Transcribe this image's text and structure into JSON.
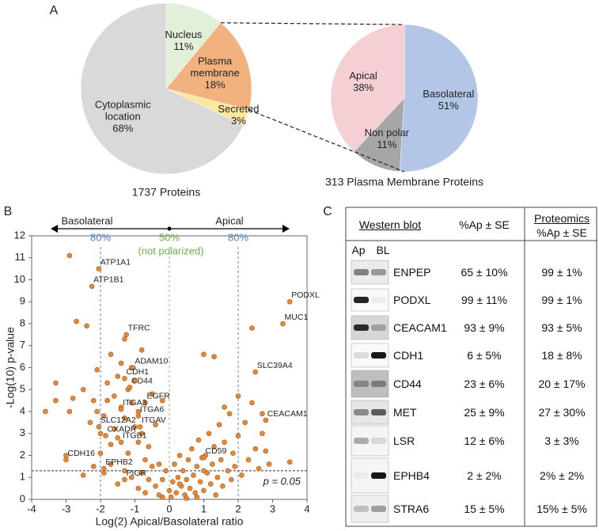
{
  "panel_labels": [
    "A",
    "B",
    "C"
  ],
  "chart_data": [
    {
      "type": "pie",
      "caption": "1737 Proteins",
      "categories": [
        "Nucleus",
        "Plasma membrane",
        "Secreted",
        "Cytoplasmic location"
      ],
      "values": [
        11,
        18,
        3,
        68
      ],
      "value_labels": [
        "11%",
        "18%",
        "3%",
        "68%"
      ],
      "colors": [
        "#e3f0d9",
        "#f2b27f",
        "#fde79c",
        "#d9d9d9"
      ]
    },
    {
      "type": "pie",
      "caption": "313 Plasma Membrane Proteins",
      "categories": [
        "Basolateral",
        "Non polar",
        "Apical"
      ],
      "values": [
        51,
        11,
        38
      ],
      "value_labels": [
        "51%",
        "11%",
        "38%"
      ],
      "colors": [
        "#b4c6e7",
        "#a6a6a6",
        "#f4cfd3"
      ]
    },
    {
      "type": "scatter",
      "x_label": "Log(2) Apical/Basolateral ratio",
      "y_label": "-Log(10) p-value",
      "xlim": [
        -4,
        4
      ],
      "ylim": [
        0,
        12
      ],
      "xticks": [
        -4,
        -3,
        -2,
        -1,
        0,
        1,
        2,
        3,
        4
      ],
      "yticks": [
        0,
        1,
        2,
        3,
        4,
        5,
        6,
        7,
        8,
        9,
        10,
        11,
        12
      ],
      "color": "#e2893b",
      "direction_labels": [
        "Basolateral",
        "Apical"
      ],
      "vlines": [
        {
          "x": -2,
          "label": "80%",
          "color": "#4f81c7",
          "label_color": "#4f81c7"
        },
        {
          "x": 0,
          "label": "50%",
          "sublabel": "(not polarized)",
          "color": "#b3a68a",
          "label_color": "#6ab04c"
        },
        {
          "x": 2,
          "label": "80%",
          "color": "#4f81c7",
          "label_color": "#4f81c7"
        }
      ],
      "hline": {
        "y": 1.3,
        "label": "p = 0.05"
      },
      "x": [
        -3.6,
        -3.3,
        -3.3,
        -3.0,
        -2.9,
        -2.7,
        -2.8,
        -2.9,
        -2.5,
        -2.4,
        -2.3,
        -2.2,
        -2.1,
        -2.1,
        -2.0,
        -2.0,
        -1.9,
        -1.8,
        -1.8,
        -1.7,
        -1.7,
        -1.6,
        -1.6,
        -1.5,
        -1.5,
        -1.4,
        -1.4,
        -1.3,
        -1.3,
        -1.2,
        -1.2,
        -1.1,
        -1.1,
        -1.0,
        -1.0,
        -0.9,
        -0.9,
        -0.8,
        -0.8,
        -0.7,
        -0.6,
        -0.5,
        -0.4,
        -0.3,
        -0.2,
        -2.5,
        -2.2,
        -1.9,
        -1.7,
        -1.5,
        -1.3,
        -1.1,
        -0.9,
        -0.8,
        -0.7,
        -0.6,
        -0.5,
        -0.4,
        -0.3,
        -0.2,
        -0.1,
        0,
        0.05,
        0.1,
        0.15,
        0.2,
        0.25,
        0.3,
        0.35,
        0.4,
        0.45,
        0.5,
        0.55,
        0.6,
        0.65,
        0.7,
        0.75,
        0.8,
        0.85,
        0.9,
        0.95,
        1.0,
        1.05,
        1.1,
        1.15,
        1.2,
        1.25,
        1.3,
        1.35,
        1.4,
        1.45,
        1.5,
        1.55,
        1.6,
        1.7,
        1.75,
        1.8,
        1.85,
        1.9,
        2.0,
        2.1,
        2.2,
        2.3,
        2.4,
        2.5,
        2.6,
        2.7,
        2.8,
        2.9,
        3.5,
        0.5,
        0.8,
        -0.2,
        0.3,
        1.0,
        1.0,
        1.3,
        2.4,
        2.7,
        2.0,
        1.6
      ],
      "values": [
        4.0,
        5.3,
        4.5,
        2.0,
        11.1,
        8.1,
        4.6,
        4.0,
        5.0,
        7.9,
        3.5,
        4.5,
        5.9,
        4.0,
        3.0,
        2.1,
        3.8,
        4.5,
        5.3,
        6.6,
        2.5,
        3.2,
        4.7,
        5.6,
        2.8,
        4.2,
        6.2,
        3.7,
        7.3,
        5.0,
        2.1,
        4.4,
        6.0,
        3.3,
        5.4,
        2.6,
        4.0,
        3.0,
        6.8,
        1.8,
        2.4,
        4.8,
        3.4,
        1.6,
        4.5,
        1.1,
        1.5,
        1.2,
        1.6,
        0.7,
        1.3,
        1.0,
        0.5,
        1.2,
        0.3,
        0.9,
        1.5,
        0.6,
        0.2,
        0.9,
        1.3,
        0.4,
        0.1,
        0.8,
        1.6,
        0.3,
        1.0,
        2.0,
        0.6,
        1.3,
        0.2,
        0.9,
        1.8,
        0.5,
        2.3,
        1.1,
        0.3,
        1.5,
        2.7,
        0.8,
        1.9,
        0.4,
        2.0,
        1.2,
        3.0,
        0.7,
        1.6,
        2.4,
        0.2,
        1.0,
        3.4,
        1.8,
        0.6,
        2.6,
        1.3,
        3.9,
        0.9,
        2.1,
        1.5,
        2.9,
        1.1,
        3.5,
        1.8,
        4.4,
        2.3,
        1.4,
        3.0,
        2.2,
        1.6,
        1.7,
        0.05,
        0.1,
        0.1,
        0.7,
        1.3,
        6.6,
        6.5,
        7.8,
        3.9,
        4.7,
        4.2
      ],
      "annotations": [
        {
          "text": "ATP1A1",
          "x": -2.05,
          "y": 10.5
        },
        {
          "text": "ATP1B1",
          "x": -2.25,
          "y": 9.7
        },
        {
          "text": "TFRC",
          "x": -1.25,
          "y": 7.5
        },
        {
          "text": "ADAM10",
          "x": -1.05,
          "y": 6.0
        },
        {
          "text": "CDH1",
          "x": -1.3,
          "y": 5.5
        },
        {
          "text": "CD44",
          "x": -1.15,
          "y": 5.1
        },
        {
          "text": "EGFR",
          "x": -0.7,
          "y": 4.4
        },
        {
          "text": "ITGA3",
          "x": -1.4,
          "y": 4.1
        },
        {
          "text": "ITGA6",
          "x": -0.9,
          "y": 3.8
        },
        {
          "text": "ITGAV",
          "x": -0.85,
          "y": 3.3
        },
        {
          "text": "SLC12A2",
          "x": -2.05,
          "y": 3.3
        },
        {
          "text": "CXADR",
          "x": -1.85,
          "y": 2.9
        },
        {
          "text": "ITGB1",
          "x": -1.4,
          "y": 2.6
        },
        {
          "text": "CDH16",
          "x": -3.0,
          "y": 1.8
        },
        {
          "text": "EPHB2",
          "x": -1.9,
          "y": 1.4
        },
        {
          "text": "PIGR",
          "x": -1.3,
          "y": 0.9
        },
        {
          "text": "PODXL",
          "x": 3.5,
          "y": 9.0
        },
        {
          "text": "MUC1",
          "x": 3.3,
          "y": 8.0
        },
        {
          "text": "SLC39A4",
          "x": 2.5,
          "y": 5.8
        },
        {
          "text": "CEACAM1",
          "x": 2.8,
          "y": 3.6
        },
        {
          "text": "CD59",
          "x": 1.0,
          "y": 1.9
        }
      ]
    }
  ],
  "table": {
    "headers": [
      "Western blot",
      "%Ap ± SE",
      "Proteomics",
      "%Ap ± SE"
    ],
    "lanes": [
      "Ap",
      "BL"
    ],
    "rows": [
      [
        "ENPEP",
        "65 ± 10%",
        "99 ± 1%"
      ],
      [
        "PODXL",
        "99 ± 11%",
        "99 ± 1%"
      ],
      [
        "CEACAM1",
        "93 ± 9%",
        "93 ± 5%"
      ],
      [
        "CDH1",
        "6 ± 5%",
        "18 ± 8%"
      ],
      [
        "CD44",
        "23 ± 6%",
        "20 ± 17%"
      ],
      [
        "MET",
        "25 ± 9%",
        "27 ± 30%"
      ],
      [
        "LSR",
        "12 ± 6%",
        "3 ± 3%"
      ],
      [
        "EPHB4",
        "2 ± 2%",
        "2% ± 2%"
      ],
      [
        "STRA6",
        "15 ± 5%",
        "15% ± 5%"
      ]
    ]
  }
}
